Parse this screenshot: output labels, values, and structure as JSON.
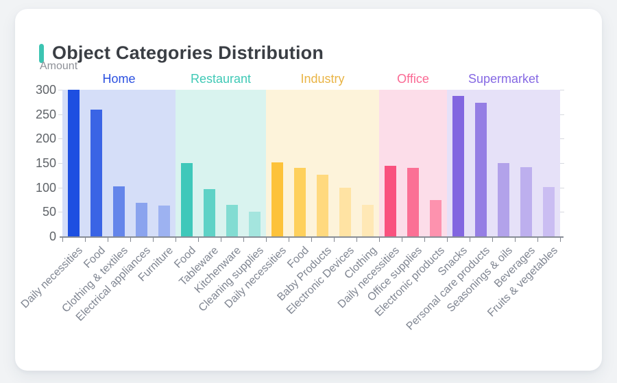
{
  "card": {
    "title": "Object Categories Distribution",
    "accent_color": "#3cc4b2"
  },
  "chart_data": {
    "type": "bar",
    "title": "Object Categories Distribution",
    "ylabel": "Amount",
    "xlabel": "",
    "ylim": [
      0,
      300
    ],
    "yticks": [
      0,
      50,
      100,
      150,
      200,
      250,
      300
    ],
    "grid": false,
    "legend_position": "group headers above colored bands",
    "axis_color": "#878c95",
    "groups": [
      {
        "name": "Home",
        "label_color": "#2b50e0",
        "band_color": "#d5def8",
        "items": [
          {
            "label": "Daily necessities",
            "value": 300,
            "color": "#1d4fe1"
          },
          {
            "label": "Food",
            "value": 259,
            "color": "#3a64e5"
          },
          {
            "label": "Clothing & textiles",
            "value": 103,
            "color": "#6485ea"
          },
          {
            "label": "Electrical appliances",
            "value": 69,
            "color": "#8aa3ee"
          },
          {
            "label": "Furniture",
            "value": 63,
            "color": "#9db2f1"
          }
        ]
      },
      {
        "name": "Restaurant",
        "label_color": "#3fc9b6",
        "band_color": "#d9f3ef",
        "items": [
          {
            "label": "Food",
            "value": 150,
            "color": "#3fc8ba"
          },
          {
            "label": "Tableware",
            "value": 97,
            "color": "#5ed2c6"
          },
          {
            "label": "Kitchenware",
            "value": 65,
            "color": "#82dcd2"
          },
          {
            "label": "Cleaning supplies",
            "value": 51,
            "color": "#a4e5de"
          }
        ]
      },
      {
        "name": "Industry",
        "label_color": "#e9b445",
        "band_color": "#fdf3da",
        "items": [
          {
            "label": "Daily necessities",
            "value": 152,
            "color": "#fdc23a"
          },
          {
            "label": "Food",
            "value": 140,
            "color": "#fed05c"
          },
          {
            "label": "Baby Products",
            "value": 126,
            "color": "#ffd97e"
          },
          {
            "label": "Electronic Devices",
            "value": 100,
            "color": "#ffe3a3"
          },
          {
            "label": "Clothing",
            "value": 64,
            "color": "#ffe8b5"
          }
        ]
      },
      {
        "name": "Office",
        "label_color": "#fa6a94",
        "band_color": "#fcdde9",
        "items": [
          {
            "label": "Daily necessities",
            "value": 144,
            "color": "#f9517e"
          },
          {
            "label": "Office supplies",
            "value": 140,
            "color": "#fb7095"
          },
          {
            "label": "Electronic products",
            "value": 75,
            "color": "#fd92ae"
          }
        ]
      },
      {
        "name": "Supermarket",
        "label_color": "#8568e3",
        "band_color": "#e6e1f8",
        "items": [
          {
            "label": "Snacks",
            "value": 287,
            "color": "#8266e0"
          },
          {
            "label": "Personal care products",
            "value": 274,
            "color": "#957ee4"
          },
          {
            "label": "Seasonings & oils",
            "value": 150,
            "color": "#b2a2ea"
          },
          {
            "label": "Beverages",
            "value": 142,
            "color": "#bdafee"
          },
          {
            "label": "Fruits & vegetables",
            "value": 101,
            "color": "#cabdf2"
          }
        ]
      }
    ]
  }
}
